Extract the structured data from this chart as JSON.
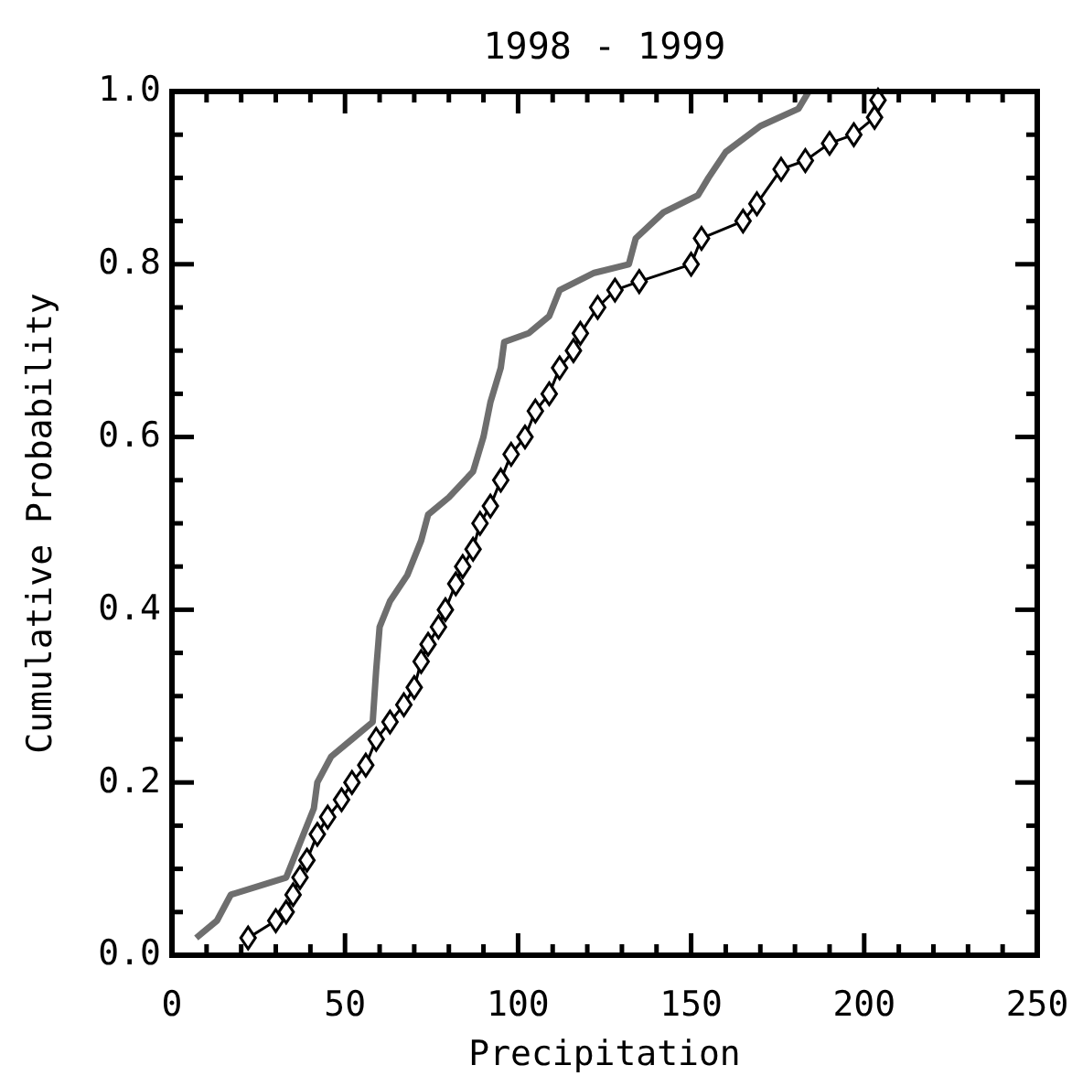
{
  "chart_data": {
    "type": "line",
    "title": "1998 - 1999",
    "xlabel": "Precipitation",
    "ylabel": "Cumulative Probability",
    "xlim": [
      0,
      250
    ],
    "ylim": [
      0,
      1
    ],
    "xticks": [
      0,
      {
        "value": 10,
        "label": null
      },
      {
        "value": 20,
        "label": null
      },
      {
        "value": 30,
        "label": null
      },
      {
        "value": 40,
        "label": null
      },
      50,
      {
        "value": 60,
        "label": null
      },
      {
        "value": 70,
        "label": null
      },
      {
        "value": 80,
        "label": null
      },
      {
        "value": 90,
        "label": null
      },
      100,
      {
        "value": 110,
        "label": null
      },
      {
        "value": 120,
        "label": null
      },
      {
        "value": 130,
        "label": null
      },
      {
        "value": 140,
        "label": null
      },
      150,
      {
        "value": 160,
        "label": null
      },
      {
        "value": 170,
        "label": null
      },
      {
        "value": 180,
        "label": null
      },
      {
        "value": 190,
        "label": null
      },
      200,
      {
        "value": 210,
        "label": null
      },
      {
        "value": 220,
        "label": null
      },
      {
        "value": 230,
        "label": null
      },
      {
        "value": 240,
        "label": null
      },
      250
    ],
    "yticks": [
      {
        "value": 0,
        "label": "0.0"
      },
      {
        "value": 0.05,
        "label": null
      },
      {
        "value": 0.1,
        "label": null
      },
      {
        "value": 0.15,
        "label": null
      },
      {
        "value": 0.2,
        "label": "0.2"
      },
      {
        "value": 0.25,
        "label": null
      },
      {
        "value": 0.3,
        "label": null
      },
      {
        "value": 0.35,
        "label": null
      },
      {
        "value": 0.4,
        "label": "0.4"
      },
      {
        "value": 0.45,
        "label": null
      },
      {
        "value": 0.5,
        "label": null
      },
      {
        "value": 0.55,
        "label": null
      },
      {
        "value": 0.6,
        "label": "0.6"
      },
      {
        "value": 0.65,
        "label": null
      },
      {
        "value": 0.7,
        "label": null
      },
      {
        "value": 0.75,
        "label": null
      },
      {
        "value": 0.8,
        "label": "0.8"
      },
      {
        "value": 0.85,
        "label": null
      },
      {
        "value": 0.9,
        "label": null
      },
      {
        "value": 0.95,
        "label": null
      },
      {
        "value": 1,
        "label": "1.0"
      }
    ],
    "grid": false,
    "series": [
      {
        "color": "#6e6e6e",
        "marker": "none",
        "x": [
          7,
          13,
          17,
          33,
          37,
          41,
          42,
          46,
          52,
          58,
          59,
          60,
          63,
          68,
          72,
          74,
          80,
          87,
          90,
          92,
          95,
          96,
          103,
          109,
          112,
          122,
          132,
          134,
          142,
          152,
          155,
          160,
          170,
          181,
          184
        ],
        "values": [
          0.02,
          0.04,
          0.07,
          0.09,
          0.13,
          0.17,
          0.2,
          0.23,
          0.25,
          0.27,
          0.33,
          0.38,
          0.41,
          0.44,
          0.48,
          0.51,
          0.53,
          0.56,
          0.6,
          0.64,
          0.68,
          0.71,
          0.72,
          0.74,
          0.77,
          0.79,
          0.8,
          0.83,
          0.86,
          0.88,
          0.9,
          0.93,
          0.96,
          0.98,
          1.0
        ]
      },
      {
        "color": "#000000",
        "marker": "diamond",
        "x": [
          22,
          30,
          33,
          35,
          37,
          39,
          42,
          45,
          49,
          52,
          56,
          59,
          63,
          67,
          70,
          72,
          74,
          77,
          79,
          82,
          84,
          87,
          89,
          92,
          95,
          98,
          102,
          105,
          109,
          112,
          116,
          118,
          123,
          128,
          135,
          150,
          153,
          165,
          169,
          176,
          183,
          190,
          197,
          203,
          204
        ],
        "values": [
          0.02,
          0.04,
          0.05,
          0.07,
          0.09,
          0.11,
          0.14,
          0.16,
          0.18,
          0.2,
          0.22,
          0.25,
          0.27,
          0.29,
          0.31,
          0.34,
          0.36,
          0.38,
          0.4,
          0.43,
          0.45,
          0.47,
          0.5,
          0.52,
          0.55,
          0.58,
          0.6,
          0.63,
          0.65,
          0.68,
          0.7,
          0.72,
          0.75,
          0.77,
          0.78,
          0.8,
          0.83,
          0.85,
          0.87,
          0.91,
          0.92,
          0.94,
          0.95,
          0.97,
          0.99
        ]
      }
    ]
  }
}
